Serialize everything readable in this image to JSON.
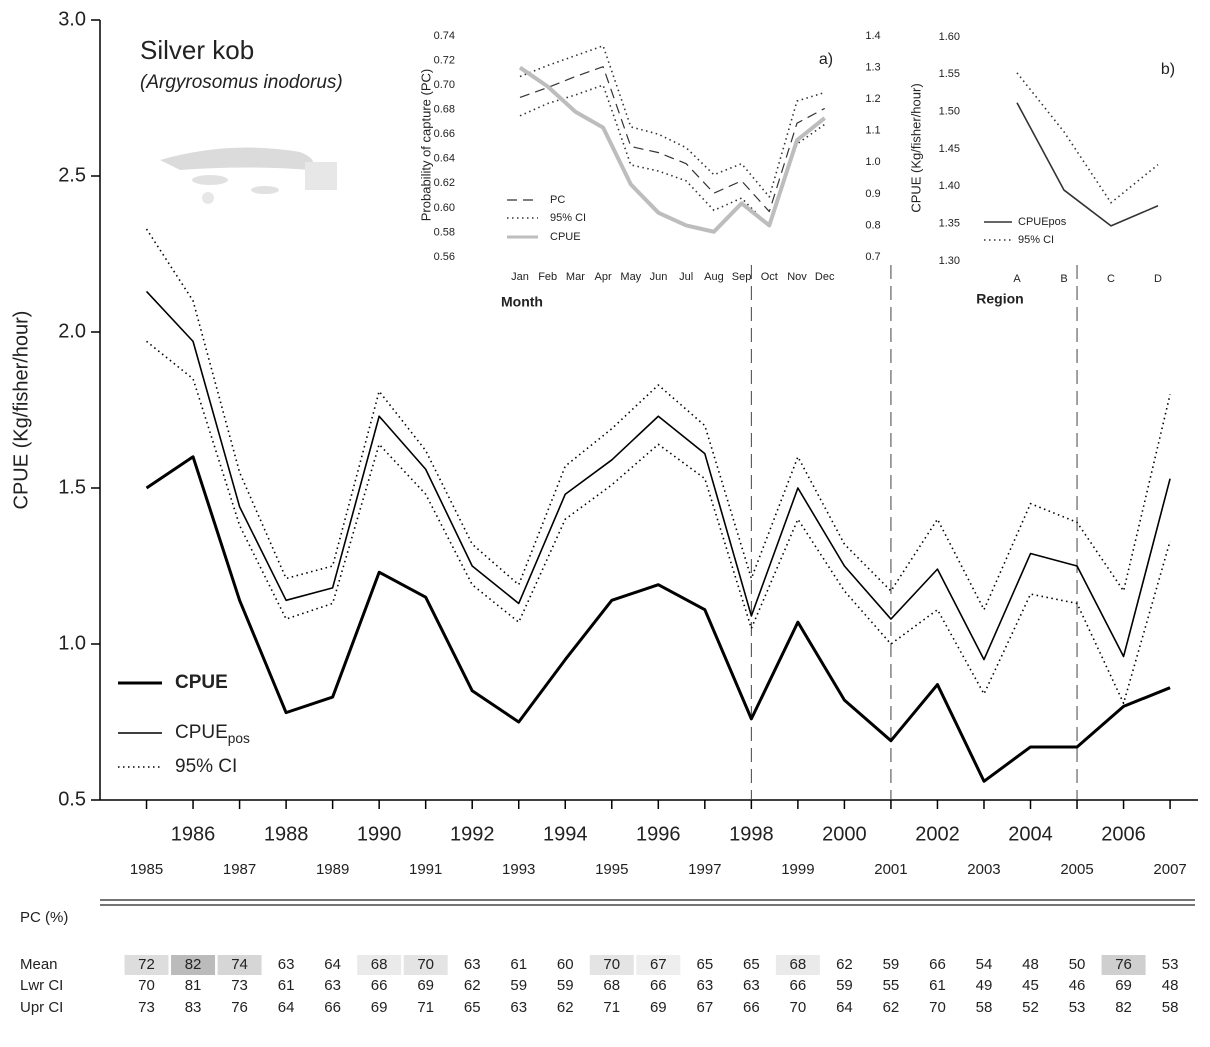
{
  "chart_data": [
    {
      "type": "line",
      "title": "Silver kob",
      "subtitle": "(Argyrosomus inodorus)",
      "y_label": "CPUE (Kg/fisher/hour)",
      "x": [
        1985,
        1986,
        1987,
        1988,
        1989,
        1990,
        1991,
        1992,
        1993,
        1994,
        1995,
        1996,
        1997,
        1998,
        1999,
        2000,
        2001,
        2002,
        2003,
        2004,
        2005,
        2006,
        2007
      ],
      "xlim": [
        1984,
        2007.6
      ],
      "xticks": [
        1985,
        1986,
        1987,
        1988,
        1989,
        1990,
        1991,
        1992,
        1993,
        1994,
        1995,
        1996,
        1997,
        1998,
        1999,
        2000,
        2001,
        2002,
        2003,
        2004,
        2005,
        2006,
        2007
      ],
      "ylim": [
        0.5,
        3.0
      ],
      "yticks": [
        0.5,
        {
          "value": 1,
          "label": "1.0"
        },
        1.5,
        {
          "value": 2,
          "label": "2.0"
        },
        2.5,
        {
          "value": 3,
          "label": "3.0"
        }
      ],
      "reference_lines": [
        1998,
        2001,
        2005
      ],
      "series": [
        {
          "name": "CPUE",
          "color": "#000000",
          "style": "thick",
          "values": [
            1.5,
            1.6,
            1.14,
            0.78,
            0.83,
            1.23,
            1.15,
            0.85,
            0.75,
            0.95,
            1.14,
            1.19,
            1.11,
            0.76,
            1.07,
            0.82,
            0.69,
            0.87,
            0.56,
            0.67,
            0.67,
            0.8,
            0.86
          ]
        },
        {
          "name": "CPUE",
          "subscript": "pos",
          "color": "#000000",
          "style": "solid",
          "values": [
            2.13,
            1.97,
            1.44,
            1.14,
            1.18,
            1.73,
            1.56,
            1.25,
            1.13,
            1.48,
            1.59,
            1.73,
            1.61,
            1.09,
            1.5,
            1.25,
            1.08,
            1.24,
            0.95,
            1.29,
            1.25,
            0.96,
            1.53
          ]
        },
        {
          "name": "95% CI",
          "color": "#000000",
          "style": "dotted",
          "upper": [
            2.33,
            2.1,
            1.55,
            1.21,
            1.25,
            1.81,
            1.62,
            1.32,
            1.19,
            1.57,
            1.69,
            1.83,
            1.7,
            1.21,
            1.6,
            1.32,
            1.17,
            1.4,
            1.11,
            1.45,
            1.39,
            1.17,
            1.8
          ],
          "lower": [
            1.97,
            1.85,
            1.38,
            1.08,
            1.13,
            1.64,
            1.48,
            1.19,
            1.07,
            1.4,
            1.51,
            1.64,
            1.53,
            1.05,
            1.4,
            1.17,
            1.0,
            1.11,
            0.84,
            1.16,
            1.13,
            0.81,
            1.33
          ]
        }
      ],
      "table": {
        "title": "PC (%)",
        "rows": [
          {
            "label": "Mean",
            "values": [
              72,
              82,
              74,
              63,
              64,
              68,
              70,
              63,
              61,
              60,
              70,
              67,
              65,
              65,
              68,
              62,
              59,
              66,
              54,
              48,
              50,
              76,
              53
            ]
          },
          {
            "label": "Lwr CI",
            "values": [
              70,
              81,
              73,
              61,
              63,
              66,
              69,
              62,
              59,
              59,
              68,
              66,
              63,
              63,
              66,
              59,
              55,
              61,
              49,
              45,
              46,
              69,
              48
            ]
          },
          {
            "label": "Upr CI",
            "values": [
              73,
              83,
              76,
              64,
              66,
              69,
              71,
              65,
              63,
              62,
              71,
              69,
              67,
              66,
              70,
              64,
              62,
              70,
              58,
              52,
              53,
              82,
              58
            ]
          }
        ]
      }
    },
    {
      "type": "line",
      "panel_label": "a)",
      "x_label": "Month",
      "y_label": "Probability of capture (PC)",
      "categories": [
        "Jan",
        "Feb",
        "Mar",
        "Apr",
        "May",
        "Jun",
        "Jul",
        "Aug",
        "Sep",
        "Oct",
        "Nov",
        "Dec"
      ],
      "ylim": [
        0.56,
        0.74
      ],
      "yticks": [
        0.56,
        0.58,
        {
          "value": 0.6,
          "label": "0.60"
        },
        0.62,
        0.64,
        0.66,
        0.68,
        {
          "value": 0.7,
          "label": "0.70"
        },
        0.72,
        0.74
      ],
      "y2lim": [
        0.7,
        1.4
      ],
      "y2ticks": [
        0.7,
        0.8,
        0.9,
        {
          "value": 1,
          "label": "1.0"
        },
        1.1,
        1.2,
        1.3,
        1.4
      ],
      "series": [
        {
          "name": "PC",
          "color": "#333333",
          "style": "dashed",
          "values": [
            0.69,
            0.698,
            0.707,
            0.715,
            0.65,
            0.645,
            0.636,
            0.612,
            0.622,
            0.597,
            0.669,
            0.681
          ]
        },
        {
          "name": "95% CI",
          "color": "#333333",
          "style": "dotted",
          "upper": [
            0.707,
            0.716,
            0.724,
            0.732,
            0.666,
            0.66,
            0.649,
            0.627,
            0.636,
            0.609,
            0.687,
            0.694
          ],
          "lower": [
            0.675,
            0.685,
            0.692,
            0.7,
            0.635,
            0.63,
            0.622,
            0.598,
            0.608,
            0.585,
            0.652,
            0.668
          ]
        },
        {
          "name": "CPUE",
          "color": "#bdbdbd",
          "style": "thick",
          "axis": "y2",
          "values": [
            1.3,
            1.24,
            1.16,
            1.11,
            0.93,
            0.84,
            0.8,
            0.78,
            0.87,
            0.8,
            1.07,
            1.14
          ]
        }
      ]
    },
    {
      "type": "line",
      "panel_label": "b)",
      "x_label": "Region",
      "y_label": "CPUE (Kg/fisher/hour)",
      "categories": [
        "A",
        "B",
        "C",
        "D"
      ],
      "ylim": [
        1.3,
        1.6
      ],
      "yticks": [
        {
          "value": 1.3,
          "label": "1.30"
        },
        1.35,
        {
          "value": 1.4,
          "label": "1.40"
        },
        1.45,
        {
          "value": 1.5,
          "label": "1.50"
        },
        1.55,
        {
          "value": 1.6,
          "label": "1.60"
        }
      ],
      "series": [
        {
          "name": "CPUEpos",
          "color": "#333333",
          "style": "solid",
          "values": [
            1.512,
            1.395,
            1.347,
            1.374
          ]
        },
        {
          "name": "95% CI",
          "color": "#333333",
          "style": "dotted",
          "upper": [
            1.552,
            1.473,
            1.378,
            1.429
          ]
        }
      ]
    }
  ]
}
